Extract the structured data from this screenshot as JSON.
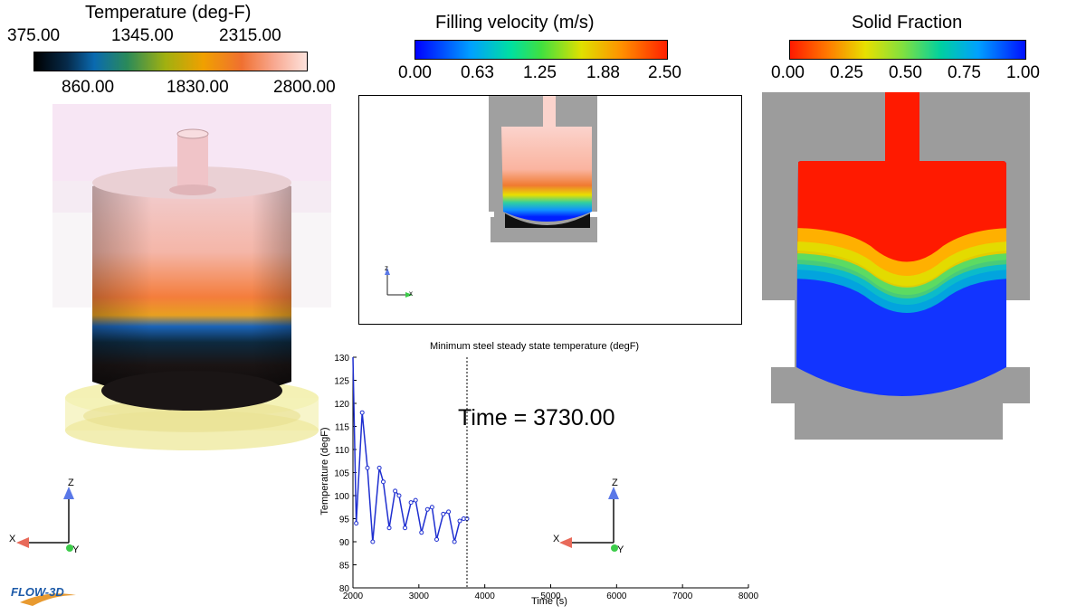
{
  "temperature_legend": {
    "title": "Temperature (deg-F)",
    "top_ticks": [
      "375.00",
      "1345.00",
      "2315.00"
    ],
    "bottom_ticks": [
      "860.00",
      "1830.00",
      "2800.00"
    ]
  },
  "velocity_legend": {
    "title": "Filling velocity (m/s)",
    "ticks": [
      "0.00",
      "0.63",
      "1.25",
      "1.88",
      "2.50"
    ]
  },
  "solid_legend": {
    "title": "Solid Fraction",
    "ticks": [
      "0.00",
      "0.25",
      "0.50",
      "0.75",
      "1.00"
    ]
  },
  "time_label": "Time = 3730.00",
  "logo_text": "FLOW-3D",
  "axes_triad": {
    "x": "X",
    "y": "Y",
    "z": "Z",
    "small_x": "x",
    "small_z": "z"
  },
  "colors": {
    "solid_red": "#ff1a00",
    "solid_blue": "#1234ff",
    "mold_gray": "#9c9c9c",
    "series_line": "#1f2fd0"
  },
  "chart_data": {
    "type": "line",
    "title": "Minimum steel steady state temperature (degF)",
    "xlabel": "Time (s)",
    "ylabel": "Temperature (degF)",
    "xlim": [
      2000,
      8000
    ],
    "ylim": [
      80,
      130
    ],
    "x_ticks": [
      2000,
      3000,
      4000,
      5000,
      6000,
      7000,
      8000
    ],
    "y_ticks": [
      80,
      85,
      90,
      95,
      100,
      105,
      110,
      115,
      120,
      125,
      130
    ],
    "current_time": 3730,
    "series": [
      {
        "x": [
          2000,
          2050,
          2140,
          2220,
          2300,
          2400,
          2460,
          2550,
          2640,
          2700,
          2790,
          2880,
          2950,
          3040,
          3130,
          3200,
          3270,
          3370,
          3450,
          3540,
          3620,
          3680,
          3730
        ],
        "y": [
          130,
          94,
          118,
          106,
          90,
          106,
          103,
          93,
          101,
          100,
          93,
          98.5,
          99,
          92,
          97,
          97.5,
          90.5,
          96,
          96.5,
          90,
          94.5,
          95,
          95
        ]
      }
    ]
  }
}
